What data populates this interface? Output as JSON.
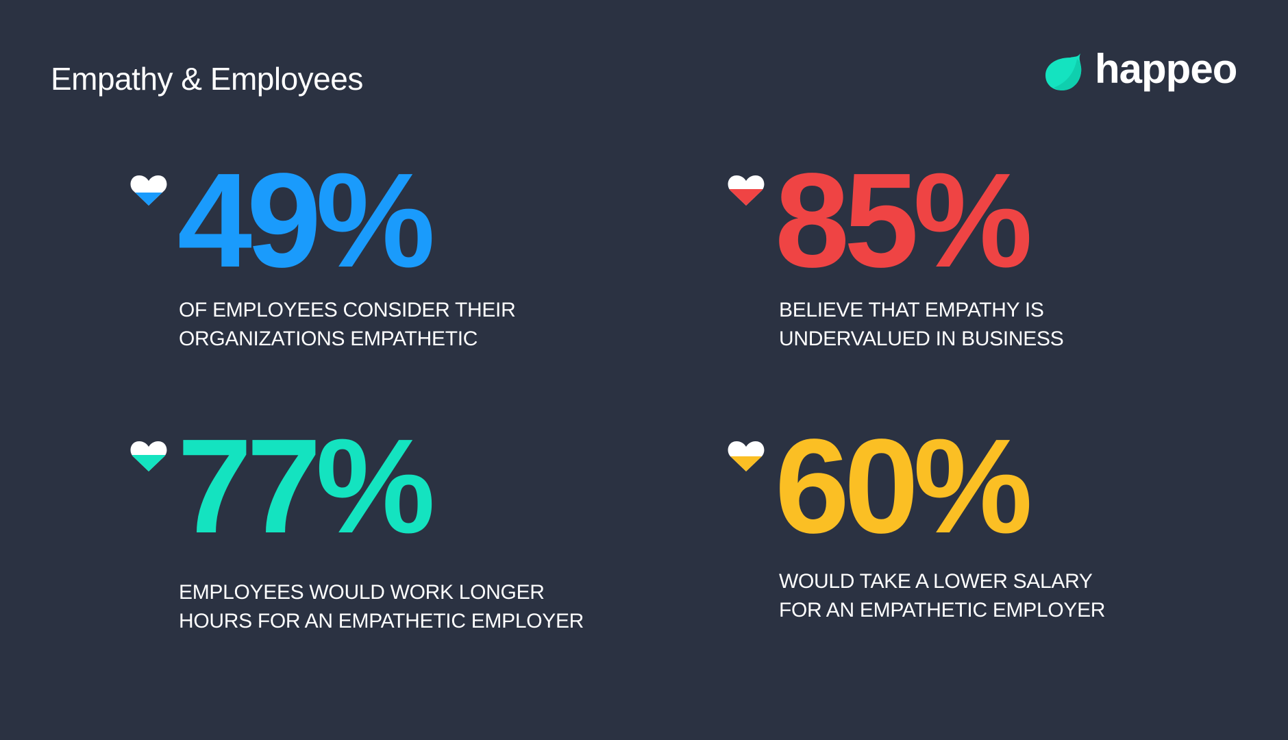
{
  "header": {
    "title": "Empathy & Employees",
    "logo_text": "happeo",
    "logo_color": "#14e3c0"
  },
  "stats": [
    {
      "value": "49%",
      "line1": "OF EMPLOYEES CONSIDER THEIR",
      "line2": "ORGANIZATIONS EMPATHETIC",
      "color": "#1a9bfc",
      "icon": "heart-icon"
    },
    {
      "value": "85%",
      "line1": "BELIEVE THAT EMPATHY IS",
      "line2": "UNDERVALUED IN BUSINESS",
      "color": "#ef4444",
      "icon": "heart-icon"
    },
    {
      "value": "77%",
      "line1": "EMPLOYEES WOULD WORK LONGER",
      "line2": "HOURS FOR AN EMPATHETIC EMPLOYER",
      "color": "#14e3c0",
      "icon": "heart-icon"
    },
    {
      "value": "60%",
      "line1": "WOULD TAKE A LOWER SALARY",
      "line2": "FOR AN EMPATHETIC EMPLOYER",
      "color": "#fbbf24",
      "icon": "heart-icon"
    }
  ]
}
